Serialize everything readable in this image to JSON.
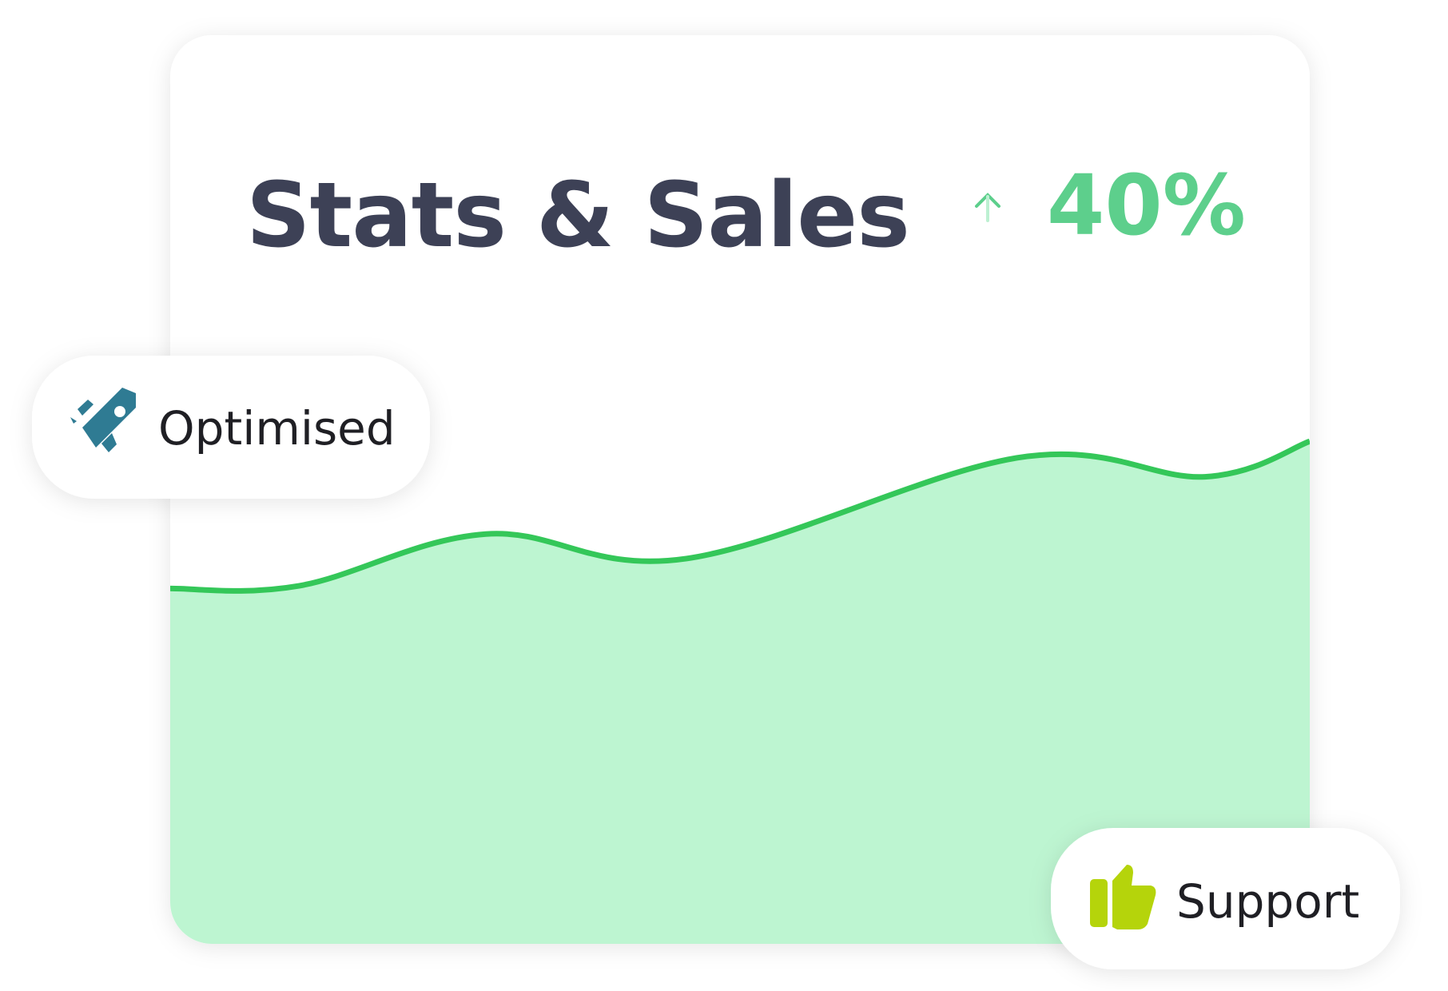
{
  "card": {
    "title": "Stats & Sales",
    "change": "40%"
  },
  "chart_data": {
    "type": "area",
    "x": [
      0,
      11.3,
      27.7,
      45.3,
      74.4,
      90.8,
      100
    ],
    "values": [
      39.1,
      39.4,
      45.1,
      42.4,
      53.5,
      51.4,
      55.3
    ],
    "xlim": [
      0,
      100
    ],
    "ylim": [
      0,
      100
    ],
    "color": "#34c759",
    "fill": "#bdf5d1"
  },
  "badges": [
    {
      "label": "Optimised"
    },
    {
      "label": "Support"
    }
  ]
}
